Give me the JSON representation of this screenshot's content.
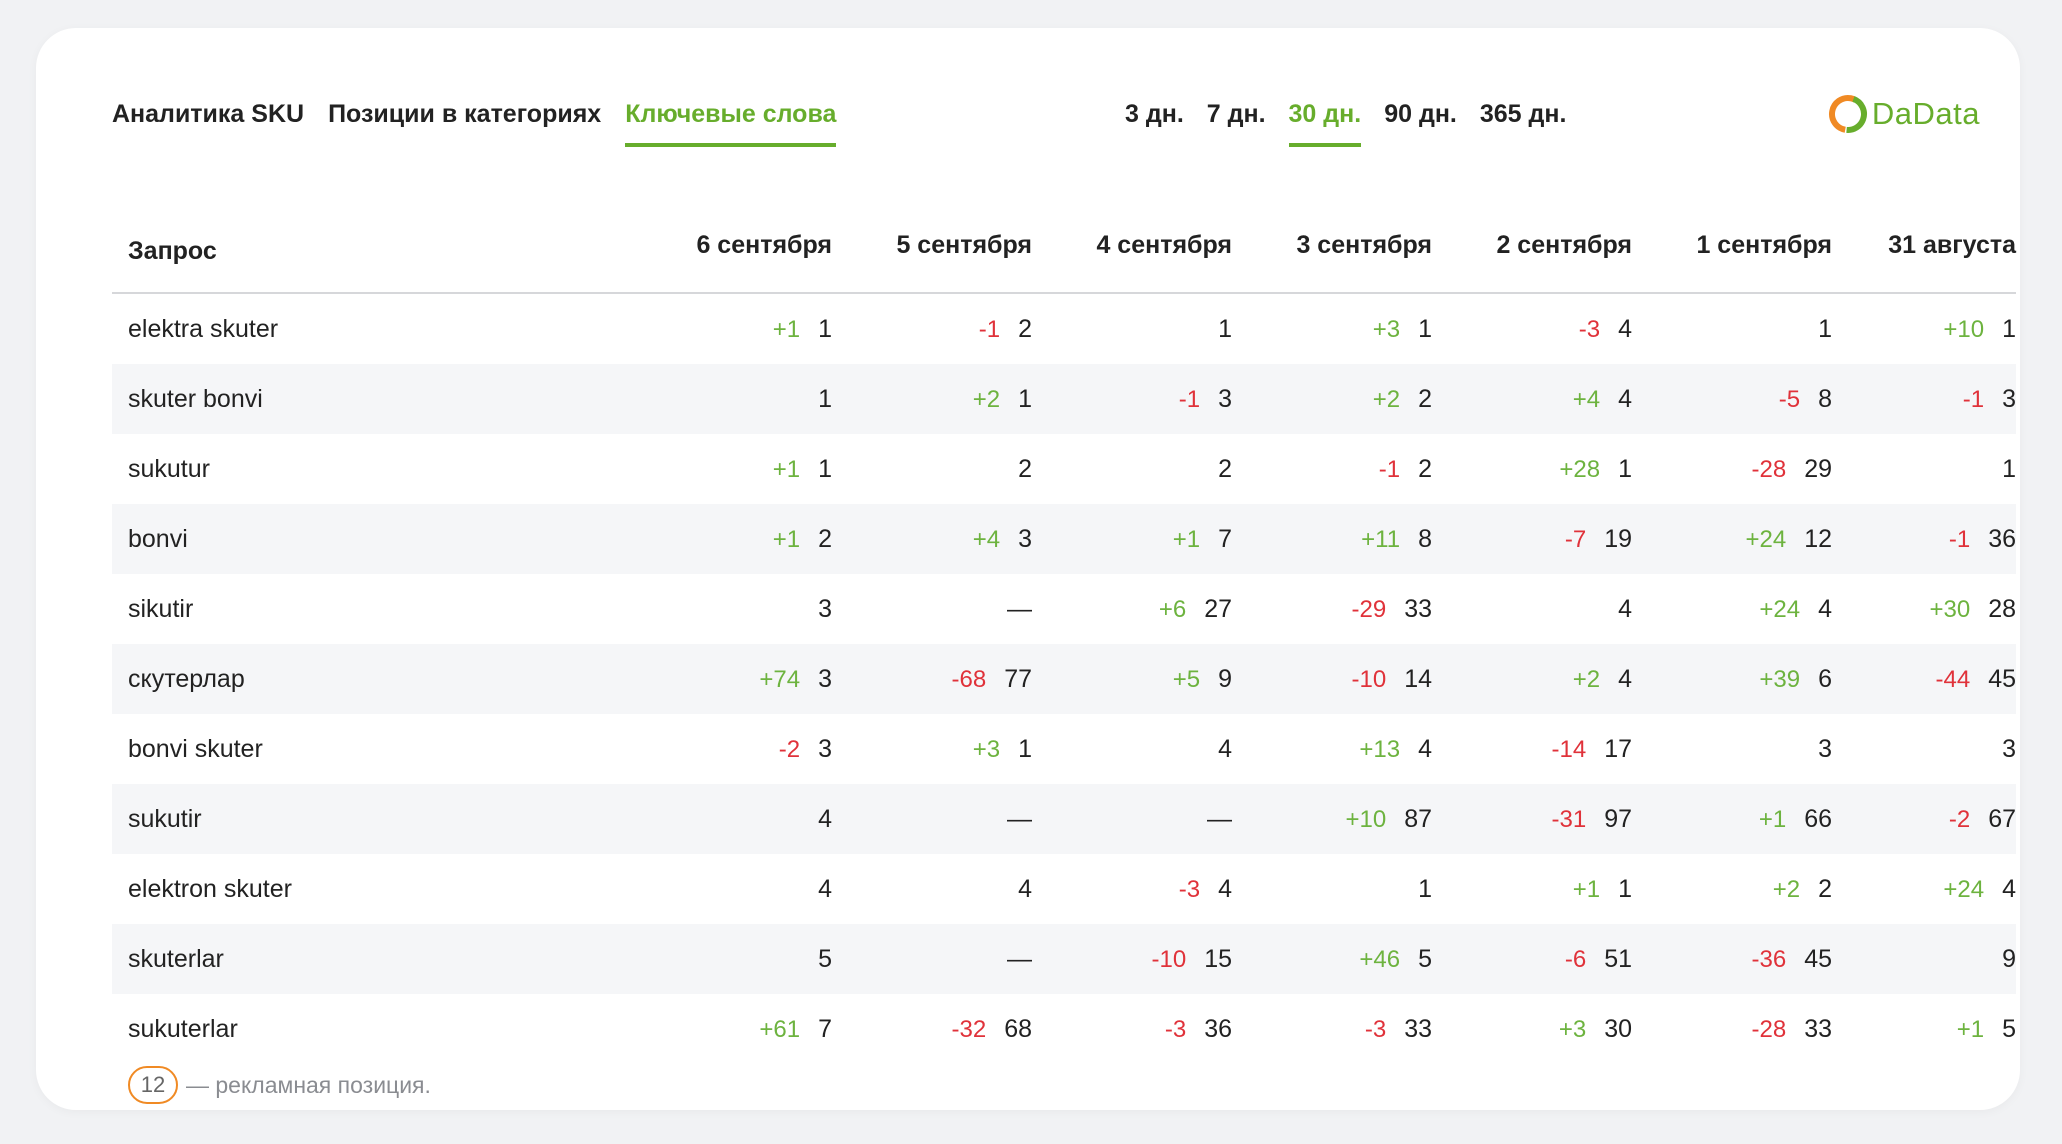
{
  "nav": {
    "tabs": [
      {
        "label": "Аналитика SKU",
        "active": false
      },
      {
        "label": "Позиции в категориях",
        "active": false
      },
      {
        "label": "Ключевые слова",
        "active": true
      }
    ]
  },
  "periods": [
    {
      "label": "3 дн.",
      "active": false
    },
    {
      "label": "7 дн.",
      "active": false
    },
    {
      "label": "30 дн.",
      "active": true
    },
    {
      "label": "90 дн.",
      "active": false
    },
    {
      "label": "365 дн.",
      "active": false
    }
  ],
  "logo": {
    "text": "DaData"
  },
  "colors": {
    "accent": "#67ad2c",
    "positive": "#6db33f",
    "negative": "#e0323a",
    "ad_badge": "#f08a24"
  },
  "table": {
    "query_header": "Запрос",
    "columns": [
      "6 сентября",
      "5 сентября",
      "4 сентября",
      "3 сентября",
      "2 сентября",
      "1 сентября",
      "31 августа"
    ],
    "rows": [
      {
        "query": "elektra skuter",
        "cells": [
          [
            "+1",
            "1"
          ],
          [
            "-1",
            "2"
          ],
          [
            "",
            "1"
          ],
          [
            "+3",
            "1"
          ],
          [
            "-3",
            "4"
          ],
          [
            "",
            "1"
          ],
          [
            "+10",
            "1"
          ]
        ]
      },
      {
        "query": "skuter bonvi",
        "cells": [
          [
            "",
            "1"
          ],
          [
            "+2",
            "1"
          ],
          [
            "-1",
            "3"
          ],
          [
            "+2",
            "2"
          ],
          [
            "+4",
            "4"
          ],
          [
            "-5",
            "8"
          ],
          [
            "-1",
            "3"
          ]
        ]
      },
      {
        "query": "sukutur",
        "cells": [
          [
            "+1",
            "1"
          ],
          [
            "",
            "2"
          ],
          [
            "",
            "2"
          ],
          [
            "-1",
            "2"
          ],
          [
            "+28",
            "1"
          ],
          [
            "-28",
            "29"
          ],
          [
            "",
            "1"
          ]
        ]
      },
      {
        "query": "bonvi",
        "cells": [
          [
            "+1",
            "2"
          ],
          [
            "+4",
            "3"
          ],
          [
            "+1",
            "7"
          ],
          [
            "+11",
            "8"
          ],
          [
            "-7",
            "19"
          ],
          [
            "+24",
            "12"
          ],
          [
            "-1",
            "36"
          ]
        ]
      },
      {
        "query": "sikutir",
        "cells": [
          [
            "",
            "3"
          ],
          [
            "",
            "—"
          ],
          [
            "+6",
            "27"
          ],
          [
            "-29",
            "33"
          ],
          [
            "",
            "4"
          ],
          [
            "+24",
            "4"
          ],
          [
            "+30",
            "28"
          ]
        ]
      },
      {
        "query": "скутерлар",
        "cells": [
          [
            "+74",
            "3"
          ],
          [
            "-68",
            "77"
          ],
          [
            "+5",
            "9"
          ],
          [
            "-10",
            "14"
          ],
          [
            "+2",
            "4"
          ],
          [
            "+39",
            "6"
          ],
          [
            "-44",
            "45"
          ]
        ]
      },
      {
        "query": "bonvi skuter",
        "cells": [
          [
            "-2",
            "3"
          ],
          [
            "+3",
            "1"
          ],
          [
            "",
            "4"
          ],
          [
            "+13",
            "4"
          ],
          [
            "-14",
            "17"
          ],
          [
            "",
            "3"
          ],
          [
            "",
            "3"
          ]
        ]
      },
      {
        "query": "sukutir",
        "cells": [
          [
            "",
            "4"
          ],
          [
            "",
            "—"
          ],
          [
            "",
            "—"
          ],
          [
            "+10",
            "87"
          ],
          [
            "-31",
            "97"
          ],
          [
            "+1",
            "66"
          ],
          [
            "-2",
            "67"
          ]
        ]
      },
      {
        "query": "elektron skuter",
        "cells": [
          [
            "",
            "4"
          ],
          [
            "",
            "4"
          ],
          [
            "-3",
            "4"
          ],
          [
            "",
            "1"
          ],
          [
            "+1",
            "1"
          ],
          [
            "+2",
            "2"
          ],
          [
            "+24",
            "4"
          ]
        ]
      },
      {
        "query": "skuterlar",
        "cells": [
          [
            "",
            "5"
          ],
          [
            "",
            "—"
          ],
          [
            "-10",
            "15"
          ],
          [
            "+46",
            "5"
          ],
          [
            "-6",
            "51"
          ],
          [
            "-36",
            "45"
          ],
          [
            "",
            "9"
          ]
        ]
      },
      {
        "query": "sukuterlar",
        "cells": [
          [
            "+61",
            "7"
          ],
          [
            "-32",
            "68"
          ],
          [
            "-3",
            "36"
          ],
          [
            "-3",
            "33"
          ],
          [
            "+3",
            "30"
          ],
          [
            "-28",
            "33"
          ],
          [
            "+1",
            "5"
          ]
        ]
      }
    ]
  },
  "footnote": {
    "badge": "12",
    "text": "— рекламная позиция."
  }
}
